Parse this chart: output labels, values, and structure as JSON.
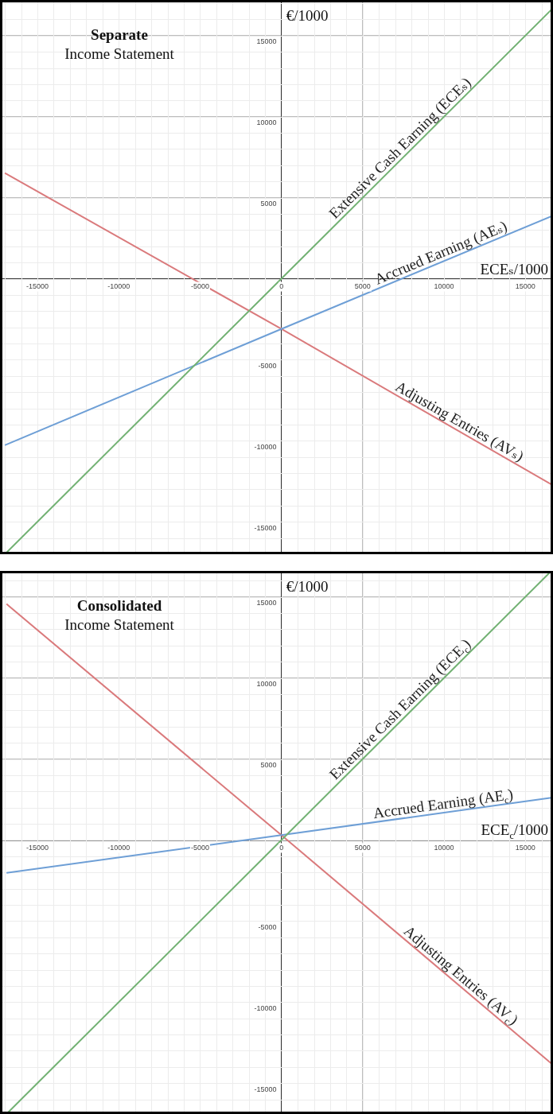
{
  "chart_data": [
    {
      "type": "line",
      "title": "Separate",
      "subtitle": "Income Statement",
      "xlabel": "ECEₛ/1000",
      "ylabel": "€/1000",
      "x": [
        -17000,
        0,
        16700
      ],
      "xlim": [
        -17300,
        16700
      ],
      "ylim": [
        -17000,
        17200
      ],
      "xticks": [
        -15000,
        -10000,
        -5000,
        0,
        5000,
        10000,
        15000
      ],
      "yticks": [
        -15000,
        -10000,
        -5000,
        5000,
        10000,
        15000
      ],
      "grid": true,
      "series": [
        {
          "name": "Extensive Cash Earning (ECEₛ)",
          "color": "#72b173",
          "values": [
            -17000,
            0,
            16700
          ]
        },
        {
          "name": "Accrued Earning (AEₛ)",
          "color": "#6e9fd6",
          "values": [
            -10270,
            -3100,
            3900
          ]
        },
        {
          "name": "Adjusting Entries (AVₛ)",
          "color": "#da7a7c",
          "values": [
            6520,
            -3100,
            -12750
          ]
        }
      ]
    },
    {
      "type": "line",
      "title": "Consolidated",
      "subtitle": "Income Statement",
      "xlabel": "ECE$_{c}$/1000",
      "ylabel": "€/1000",
      "x": [
        -16900,
        0,
        16600
      ],
      "xlim": [
        -17300,
        16700
      ],
      "ylim": [
        -16900,
        16600
      ],
      "xticks": [
        -15000,
        -10000,
        -5000,
        0,
        5000,
        10000,
        15000
      ],
      "yticks": [
        -15000,
        -10000,
        -5000,
        5000,
        10000,
        15000
      ],
      "grid": true,
      "series": [
        {
          "name": "Extensive Cash Earning (ECE$_{c}$)",
          "color": "#72b173",
          "values": [
            -16900,
            0,
            16600
          ]
        },
        {
          "name": "Accrued Earning (AE$_{c}$)",
          "color": "#6e9fd6",
          "values": [
            -2030,
            300,
            2610
          ]
        },
        {
          "name": "Adjusting Entries (AV$_{c}$)",
          "color": "#da7a7c",
          "values": [
            14560,
            300,
            -13780
          ]
        }
      ]
    }
  ]
}
